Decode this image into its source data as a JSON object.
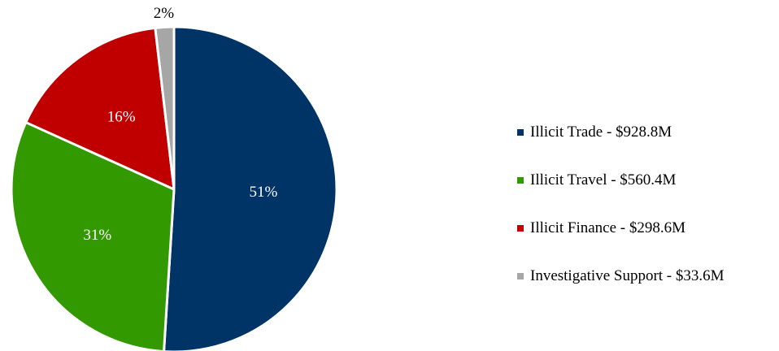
{
  "chart_data": {
    "type": "pie",
    "title": "",
    "legend_position": "right",
    "start_angle_deg": 0,
    "direction": "clockwise",
    "slices": [
      {
        "label": "Illicit Trade - $928.8M",
        "value": 928.8,
        "percent_label": "51%",
        "color": "#003366"
      },
      {
        "label": "Illicit Travel - $560.4M",
        "value": 560.4,
        "percent_label": "31%",
        "color": "#339900"
      },
      {
        "label": "Illicit Finance - $298.6M",
        "value": 298.6,
        "percent_label": "16%",
        "color": "#C00000"
      },
      {
        "label": "Investigative Support - $33.6M",
        "value": 33.6,
        "percent_label": "2%",
        "color": "#A6A6A6"
      }
    ]
  }
}
